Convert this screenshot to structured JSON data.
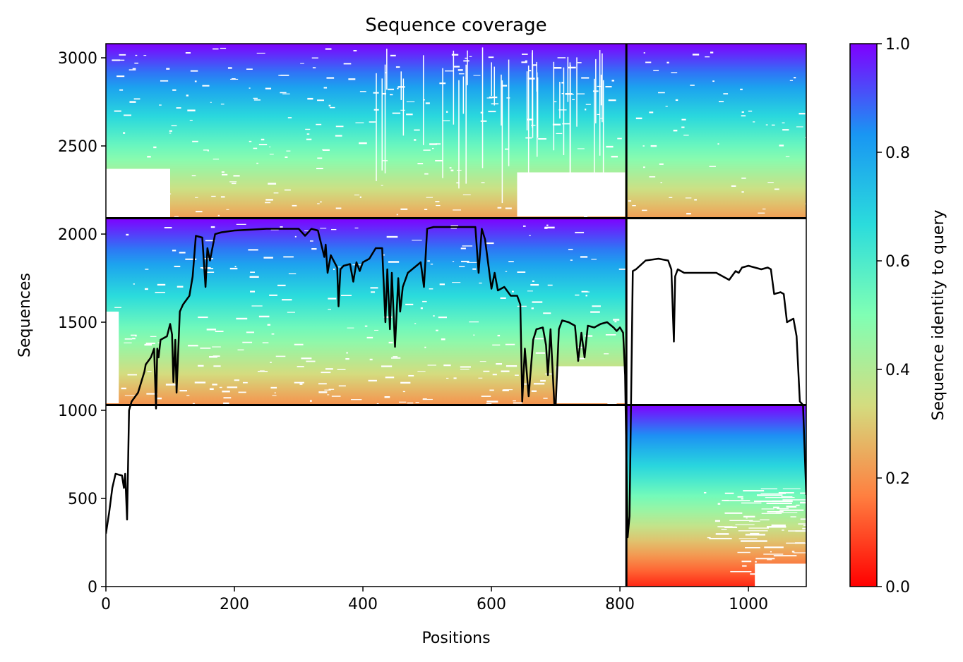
{
  "chart_data": {
    "type": "heatmap",
    "title": "Sequence coverage",
    "xlabel": "Positions",
    "ylabel": "Sequences",
    "xlim": [
      0,
      1090
    ],
    "ylim": [
      0,
      3080
    ],
    "x_ticks": [
      "0",
      "200",
      "400",
      "600",
      "800",
      "1000"
    ],
    "x_tick_values": [
      0,
      200,
      400,
      600,
      800,
      1000
    ],
    "y_ticks": [
      "0",
      "500",
      "1000",
      "1500",
      "2000",
      "2500",
      "3000"
    ],
    "y_tick_values": [
      0,
      500,
      1000,
      1500,
      2000,
      2500,
      3000
    ],
    "colorbar": {
      "label": "Sequence identity to query",
      "range": [
        0,
        1
      ],
      "ticks": [
        "0.0",
        "0.2",
        "0.4",
        "0.6",
        "0.8",
        "1.0"
      ],
      "tick_values": [
        0,
        0.2,
        0.4,
        0.6,
        0.8,
        1.0
      ],
      "colormap": "rainbow_r",
      "colors": [
        "#ff0000",
        "#ff7f40",
        "#d4dc7f",
        "#80ffb4",
        "#2bdcdc",
        "#1996f3",
        "#7f00ff"
      ]
    },
    "block_boundaries": {
      "x_split": 810,
      "y_splits": [
        1030,
        2090
      ]
    },
    "blocks": [
      {
        "name": "paired",
        "x": [
          0,
          810
        ],
        "y": [
          2090,
          3080
        ],
        "identity_top": 1.0,
        "identity_bottom": 0.22
      },
      {
        "name": "paired",
        "x": [
          810,
          1090
        ],
        "y": [
          2090,
          3080
        ],
        "identity_top": 1.0,
        "identity_bottom": 0.22
      },
      {
        "name": "chain-A",
        "x": [
          0,
          810
        ],
        "y": [
          1030,
          2090
        ],
        "identity_top": 1.0,
        "identity_bottom": 0.2
      },
      {
        "name": "chain-B",
        "x": [
          810,
          1090
        ],
        "y": [
          0,
          1030
        ],
        "identity_top": 1.0,
        "identity_bottom": 0.05
      }
    ],
    "coverage_line": {
      "color": "#000000",
      "x": [
        0,
        5,
        10,
        15,
        20,
        25,
        28,
        30,
        33,
        36,
        40,
        50,
        60,
        62,
        70,
        75,
        78,
        80,
        82,
        85,
        95,
        100,
        103,
        105,
        108,
        110,
        115,
        120,
        130,
        135,
        140,
        150,
        155,
        158,
        162,
        170,
        180,
        200,
        250,
        300,
        310,
        320,
        330,
        340,
        342,
        345,
        350,
        360,
        362,
        365,
        370,
        380,
        385,
        390,
        395,
        400,
        410,
        420,
        430,
        435,
        438,
        442,
        445,
        450,
        455,
        458,
        462,
        470,
        480,
        490,
        495,
        500,
        510,
        520,
        550,
        575,
        580,
        585,
        590,
        600,
        605,
        610,
        620,
        630,
        640,
        645,
        648,
        652,
        658,
        665,
        670,
        680,
        685,
        688,
        692,
        698,
        700,
        705,
        710,
        720,
        730,
        735,
        740,
        745,
        750,
        760,
        770,
        780,
        790,
        795,
        800,
        805,
        808,
        812,
        815,
        820,
        825,
        840,
        860,
        875,
        880,
        884,
        886,
        890,
        900,
        920,
        950,
        970,
        980,
        985,
        990,
        1000,
        1020,
        1030,
        1035,
        1040,
        1050,
        1055,
        1060,
        1070,
        1075,
        1080,
        1085,
        1090
      ],
      "y": [
        300,
        420,
        560,
        640,
        635,
        630,
        560,
        640,
        380,
        1000,
        1050,
        1100,
        1220,
        1260,
        1300,
        1350,
        1010,
        1350,
        1300,
        1400,
        1420,
        1490,
        1430,
        1160,
        1400,
        1100,
        1560,
        1600,
        1650,
        1760,
        1990,
        1980,
        1700,
        1920,
        1850,
        2000,
        2010,
        2020,
        2030,
        2030,
        1990,
        2030,
        2020,
        1870,
        1940,
        1780,
        1880,
        1810,
        1590,
        1800,
        1820,
        1830,
        1730,
        1840,
        1790,
        1840,
        1860,
        1920,
        1920,
        1500,
        1800,
        1460,
        1780,
        1360,
        1750,
        1560,
        1700,
        1780,
        1810,
        1840,
        1700,
        2030,
        2040,
        2040,
        2040,
        2040,
        1780,
        2030,
        1970,
        1690,
        1780,
        1680,
        1700,
        1650,
        1650,
        1600,
        1050,
        1350,
        1080,
        1400,
        1460,
        1470,
        1370,
        1200,
        1460,
        1030,
        1030,
        1460,
        1510,
        1500,
        1480,
        1280,
        1440,
        1300,
        1480,
        1470,
        1490,
        1500,
        1470,
        1450,
        1470,
        1440,
        1200,
        280,
        400,
        1790,
        1800,
        1850,
        1860,
        1850,
        1800,
        1390,
        1760,
        1800,
        1780,
        1780,
        1780,
        1740,
        1790,
        1780,
        1810,
        1820,
        1800,
        1810,
        1800,
        1660,
        1670,
        1660,
        1500,
        1520,
        1420,
        1050,
        1030,
        520
      ]
    }
  }
}
